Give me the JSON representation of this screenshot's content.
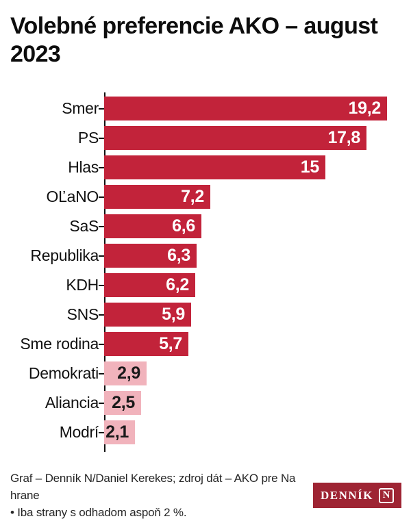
{
  "header": {
    "title_line1": "Volebné preferencie AKO – august",
    "title_line2": "2023"
  },
  "chart_data": {
    "type": "bar",
    "orientation": "horizontal",
    "title": "Volebné preferencie AKO – august 2023",
    "categories": [
      "Smer",
      "PS",
      "Hlas",
      "OĽaNO",
      "SaS",
      "Republika",
      "KDH",
      "SNS",
      "Sme rodina",
      "Demokrati",
      "Aliancia",
      "Modrí"
    ],
    "values": [
      19.2,
      17.8,
      15,
      7.2,
      6.6,
      6.3,
      6.2,
      5.9,
      5.7,
      2.9,
      2.5,
      2.1
    ],
    "value_labels": [
      "19,2",
      "17,8",
      "15",
      "7,2",
      "6,6",
      "6,3",
      "6,2",
      "5,9",
      "5,7",
      "2,9",
      "2,5",
      "2,1"
    ],
    "unit": "%",
    "xlim": [
      0,
      20.7
    ],
    "grid": false,
    "legend": null,
    "highlight_threshold": 5
  },
  "colors": {
    "bar_strong": "#c2233a",
    "bar_light": "#f1b3bc",
    "value_on_strong": "#ffffff",
    "value_on_light": "#1a1a1a",
    "axis": "#111111",
    "logo_bg": "#9e2433",
    "title_text": "#0d0d0d",
    "footer_text": "#262626"
  },
  "footer": {
    "credit_line1": "Graf – Denník N/Daniel Kerekes; zdroj dát – AKO pre Na hrane",
    "credit_line2": "• Iba strany s odhadom aspoň 2 %.",
    "logo_text": "DENNÍK",
    "logo_n": "N"
  }
}
